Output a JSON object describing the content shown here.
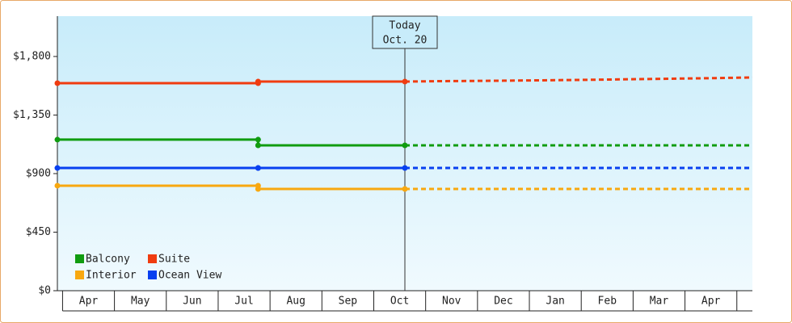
{
  "chart_data": {
    "type": "line",
    "categories": [
      "Apr",
      "May",
      "Jun",
      "Jul",
      "Aug",
      "Sep",
      "Oct",
      "Nov",
      "Dec",
      "Jan",
      "Feb",
      "Mar",
      "Apr"
    ],
    "xlim": [
      -0.1,
      13.3
    ],
    "ylim": [
      0,
      2110
    ],
    "yticks": [
      {
        "value": 0,
        "label": "$0"
      },
      {
        "value": 450,
        "label": "$450"
      },
      {
        "value": 900,
        "label": "$900"
      },
      {
        "value": 1350,
        "label": "$1,350"
      },
      {
        "value": 1800,
        "label": "$1,800"
      }
    ],
    "today": {
      "x": 6.6,
      "label": [
        "Today",
        "Oct. 20"
      ]
    },
    "series": [
      {
        "name": "Balcony",
        "color": "#109c10",
        "x": [
          -0.1,
          3.77,
          3.77,
          6.6
        ],
        "values": [
          1161,
          1161,
          1117,
          1117
        ],
        "forecast_x": [
          6.6,
          13.3
        ],
        "forecast": [
          1117,
          1117
        ]
      },
      {
        "name": "Suite",
        "color": "#f03c10",
        "x": [
          -0.1,
          3.77,
          3.77,
          6.6
        ],
        "values": [
          1595,
          1595,
          1607,
          1607
        ],
        "forecast_x": [
          6.6,
          7.2,
          8.5,
          10,
          11.3,
          12.6,
          13.3
        ],
        "forecast": [
          1607,
          1610,
          1614,
          1620,
          1627,
          1634,
          1639
        ]
      },
      {
        "name": "Interior",
        "color": "#f8a810",
        "x": [
          -0.1,
          3.77,
          3.77,
          6.6
        ],
        "values": [
          807,
          807,
          782,
          782
        ],
        "forecast_x": [
          6.6,
          13.3
        ],
        "forecast": [
          782,
          782
        ]
      },
      {
        "name": "Ocean View",
        "color": "#0840f0",
        "x": [
          -0.1,
          3.77,
          3.77,
          6.6
        ],
        "values": [
          943,
          943,
          943,
          943
        ],
        "forecast_x": [
          6.6,
          13.3
        ],
        "forecast": [
          943,
          943
        ]
      }
    ]
  }
}
